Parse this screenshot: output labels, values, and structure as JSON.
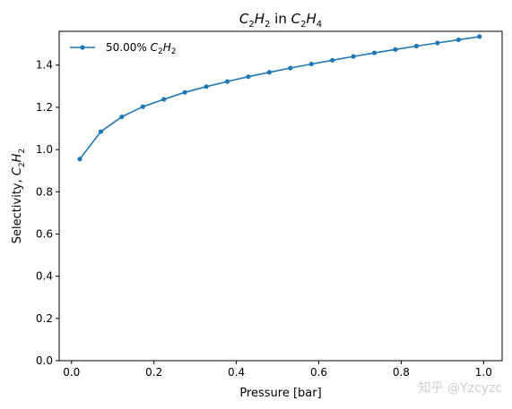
{
  "chart_data": {
    "type": "line",
    "title_main": "C",
    "title_sub1": "2",
    "title_mid": "H",
    "title_sub2": "2",
    "title_in": " in ",
    "title_main2": "C",
    "title_sub3": "2",
    "title_mid2": "H",
    "title_sub4": "4",
    "xlabel": "Pressure [bar]",
    "ylabel_prefix": "Selectivity, ",
    "ylabel_c": "C",
    "ylabel_sub1": "2",
    "ylabel_h": "H",
    "ylabel_sub2": "2",
    "xlim": [
      -0.03,
      1.045
    ],
    "ylim": [
      0.0,
      1.56
    ],
    "xticks": [
      0.0,
      0.2,
      0.4,
      0.6,
      0.8,
      1.0
    ],
    "xtick_labels": [
      "0.0",
      "0.2",
      "0.4",
      "0.6",
      "0.8",
      "1.0"
    ],
    "yticks": [
      0.0,
      0.2,
      0.4,
      0.6,
      0.8,
      1.0,
      1.2,
      1.4
    ],
    "ytick_labels": [
      "0.0",
      "0.2",
      "0.4",
      "0.6",
      "0.8",
      "1.0",
      "1.2",
      "1.4"
    ],
    "grid": false,
    "legend_position": "upper-left",
    "series": [
      {
        "name": "50.00% C2H2",
        "legend_label_prefix": "50.00% ",
        "legend_c": "C",
        "legend_sub1": "2",
        "legend_h": "H",
        "legend_sub2": "2",
        "color": "#1f77b4",
        "x": [
          0.02,
          0.071,
          0.122,
          0.173,
          0.224,
          0.275,
          0.327,
          0.378,
          0.429,
          0.48,
          0.531,
          0.582,
          0.633,
          0.684,
          0.735,
          0.786,
          0.837,
          0.888,
          0.939,
          0.99
        ],
        "y": [
          0.955,
          1.085,
          1.155,
          1.203,
          1.238,
          1.271,
          1.298,
          1.322,
          1.345,
          1.366,
          1.386,
          1.405,
          1.423,
          1.441,
          1.458,
          1.474,
          1.49,
          1.505,
          1.52,
          1.535
        ]
      }
    ]
  },
  "watermark": "知乎 @Yzcyzc"
}
